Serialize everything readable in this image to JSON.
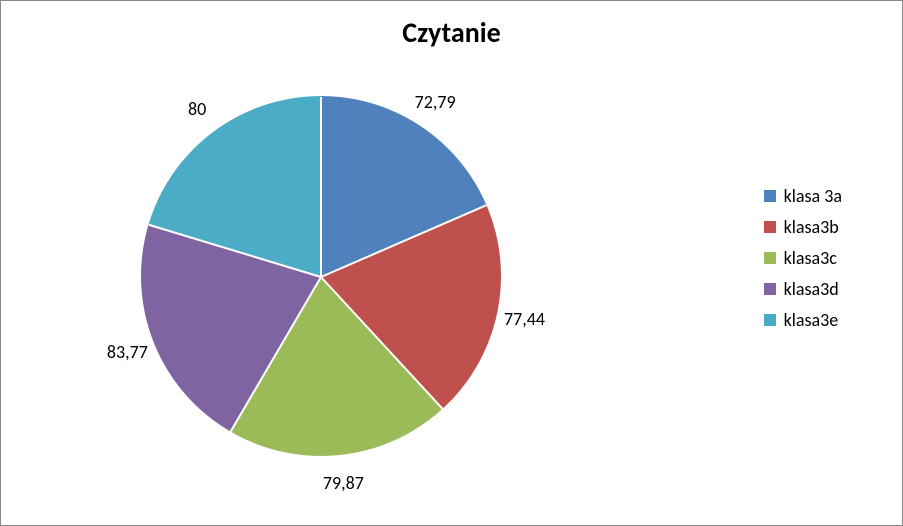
{
  "chart": {
    "type": "pie",
    "title": "Czytanie",
    "title_fontsize": 28,
    "title_fontweight": "bold",
    "title_color": "#000000",
    "background_color": "#ffffff",
    "border_color": "#888888",
    "slice_border_color": "#ffffff",
    "slice_border_width": 2,
    "label_fontsize": 18,
    "label_color": "#000000",
    "start_angle_deg": 0,
    "series": [
      {
        "name": "klasa 3a",
        "value": 72.79,
        "label": "72,79",
        "color": "#4f81bd"
      },
      {
        "name": "klasa3b",
        "value": 77.44,
        "label": "77,44",
        "color": "#c0504d"
      },
      {
        "name": "klasa3c",
        "value": 79.87,
        "label": "79,87",
        "color": "#9bbb59"
      },
      {
        "name": "klasa3d",
        "value": 83.77,
        "label": "83,77",
        "color": "#8064a2"
      },
      {
        "name": "klasa3e",
        "value": 80.0,
        "label": "80",
        "color": "#4bacc6"
      }
    ],
    "legend": {
      "position": "right",
      "fontsize": 18,
      "swatch_size": 12
    }
  }
}
